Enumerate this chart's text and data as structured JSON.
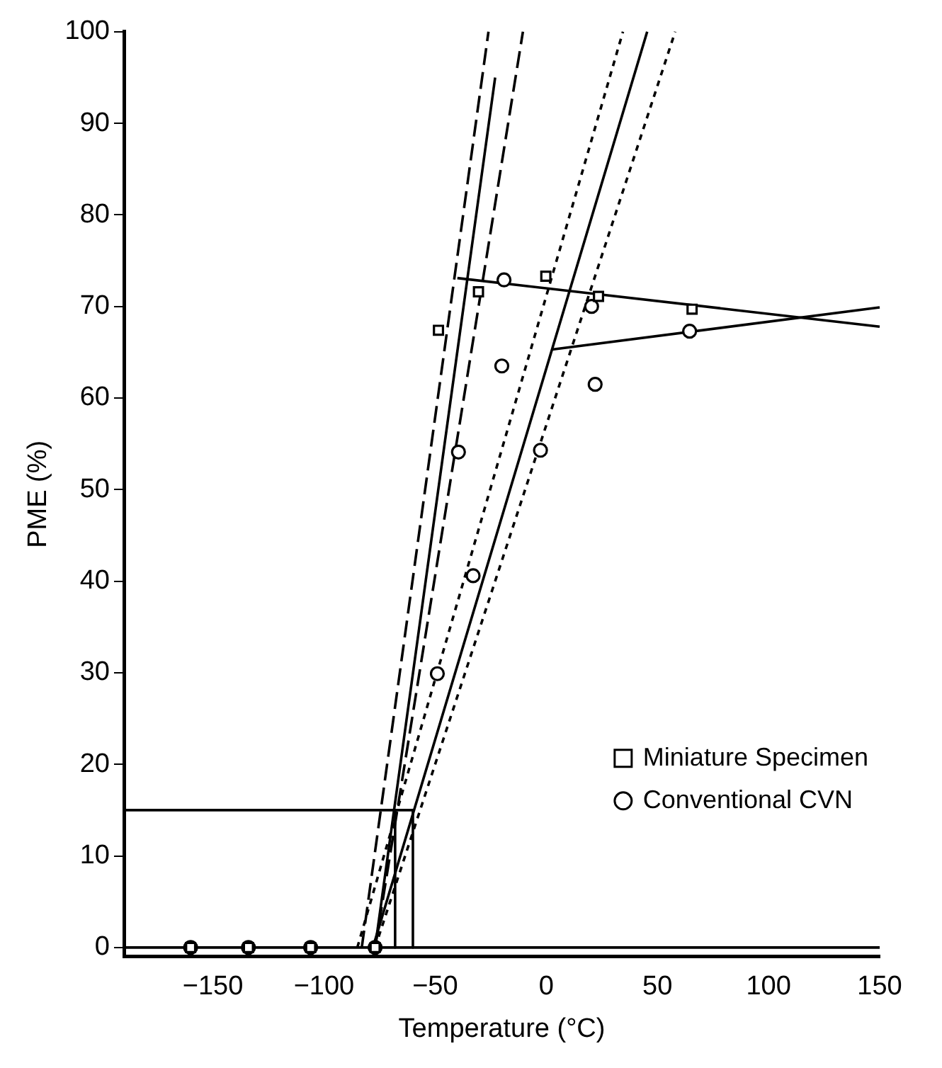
{
  "chart_data": {
    "type": "scatter",
    "xlabel": "Temperature (°C)",
    "ylabel": "PME (%)",
    "xlim": [
      -190,
      150
    ],
    "ylim": [
      -1,
      100
    ],
    "xticks": [
      {
        "value": -150,
        "label": "−150"
      },
      {
        "value": -100,
        "label": "−100"
      },
      {
        "value": -50,
        "label": "−50"
      },
      0,
      50,
      100,
      150
    ],
    "yticks": [
      0,
      10,
      20,
      30,
      40,
      50,
      60,
      70,
      80,
      90,
      100
    ],
    "grid": false,
    "legend": "bottom right",
    "series": [
      {
        "name": "Miniature Specimen",
        "type": "scatter",
        "marker": "square",
        "color": "#000000",
        "x": [
          -160,
          -134,
          -106,
          -77,
          -48.5,
          -30.5,
          -0.2,
          23.5,
          65.6
        ],
        "values": [
          0,
          0,
          0,
          0,
          67.4,
          71.6,
          73.3,
          71.1,
          69.7
        ]
      },
      {
        "name": "Conventional CVN",
        "type": "scatter",
        "marker": "circle",
        "color": "#000000",
        "x": [
          -160,
          -134,
          -106,
          -77,
          -49,
          -32.9,
          -39.5,
          -20,
          -19,
          -2.6,
          20.4,
          22,
          64.5
        ],
        "values": [
          0,
          0,
          0,
          0,
          29.9,
          40.6,
          54.1,
          63.5,
          72.9,
          54.3,
          70,
          61.5,
          67.3
        ]
      },
      {
        "type": "line",
        "marker": "none",
        "line_style": "solid",
        "color": "#000000",
        "x": [
          -190,
          150
        ],
        "values": [
          0,
          0
        ]
      },
      {
        "type": "line",
        "marker": "none",
        "line_style": "solid",
        "color": "#000000",
        "x": [
          -40,
          150
        ],
        "values": [
          73.1,
          67.8
        ]
      },
      {
        "type": "line",
        "marker": "none",
        "line_style": "solid",
        "color": "#000000",
        "x": [
          2.6,
          150
        ],
        "values": [
          65.3,
          69.9
        ]
      },
      {
        "type": "line",
        "marker": "none",
        "line_style": "solid",
        "color": "#000000",
        "x": [
          -77,
          -23
        ],
        "values": [
          0,
          95
        ]
      },
      {
        "type": "line",
        "marker": "none",
        "line_style": "dashed",
        "color": "#000000",
        "x": [
          -83,
          -26
        ],
        "values": [
          0,
          100
        ]
      },
      {
        "type": "line",
        "marker": "none",
        "line_style": "dashed",
        "color": "#000000",
        "x": [
          -77,
          -10.5
        ],
        "values": [
          0,
          100
        ]
      },
      {
        "type": "line",
        "marker": "none",
        "line_style": "solid",
        "color": "#000000",
        "x": [
          -78,
          45.4
        ],
        "values": [
          0,
          100
        ]
      },
      {
        "type": "line",
        "marker": "none",
        "line_style": "dotted",
        "color": "#000000",
        "x": [
          -85,
          34.5
        ],
        "values": [
          0,
          100
        ]
      },
      {
        "type": "line",
        "marker": "none",
        "line_style": "dotted",
        "color": "#000000",
        "x": [
          -77,
          58
        ],
        "values": [
          0,
          100
        ]
      },
      {
        "type": "line",
        "marker": "none",
        "line_style": "solid",
        "color": "#000000",
        "x": [
          -190,
          -60
        ],
        "values": [
          15,
          15
        ]
      },
      {
        "type": "line",
        "marker": "none",
        "line_style": "solid",
        "color": "#000000",
        "x": [
          -68,
          -68
        ],
        "values": [
          15,
          0
        ]
      },
      {
        "type": "line",
        "marker": "none",
        "line_style": "solid",
        "color": "#000000",
        "x": [
          -60,
          -60
        ],
        "values": [
          15,
          0
        ]
      }
    ]
  }
}
